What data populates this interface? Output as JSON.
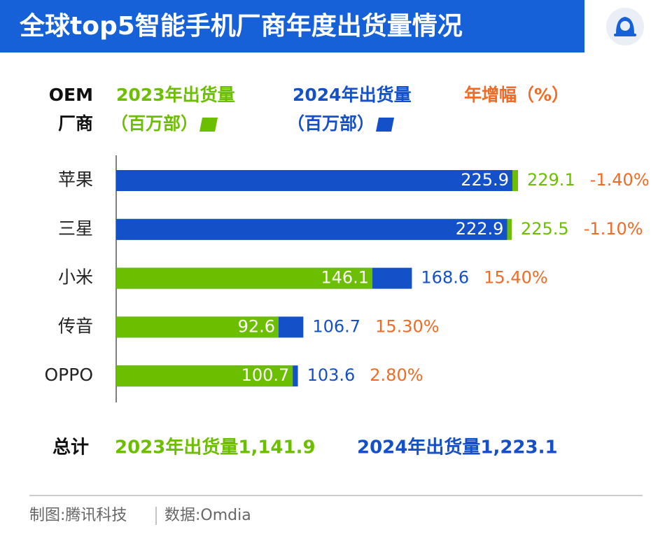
{
  "chart_data": {
    "type": "bar",
    "title": "全球top5智能手机厂商年度出货量情况",
    "category_header": [
      "OEM",
      "厂商"
    ],
    "categories": [
      "苹果",
      "三星",
      "小米",
      "传音",
      "OPPO"
    ],
    "series": [
      {
        "name": "2023年出货量",
        "unit": "（百万部）",
        "color": "#6cbf00",
        "values": [
          229.1,
          225.5,
          146.1,
          92.6,
          100.7
        ]
      },
      {
        "name": "2024年出货量",
        "unit": "（百万部）",
        "color": "#1450c8",
        "values": [
          225.9,
          222.9,
          168.6,
          106.7,
          103.6
        ]
      }
    ],
    "growth": {
      "name": "年增幅（%）",
      "color": "#f26a24",
      "values": [
        -1.4,
        -1.1,
        15.4,
        15.3,
        2.8
      ],
      "value_labels": [
        "-1.40%",
        "-1.10%",
        "15.40%",
        "15.30%",
        "2.80%"
      ]
    },
    "totals": {
      "label": "总计",
      "values": [
        1141.9,
        1223.1
      ],
      "value_labels": [
        "1,141.9",
        "1,223.1"
      ]
    },
    "source": [
      "制图:腾讯科技",
      "数据:Omdia"
    ]
  }
}
